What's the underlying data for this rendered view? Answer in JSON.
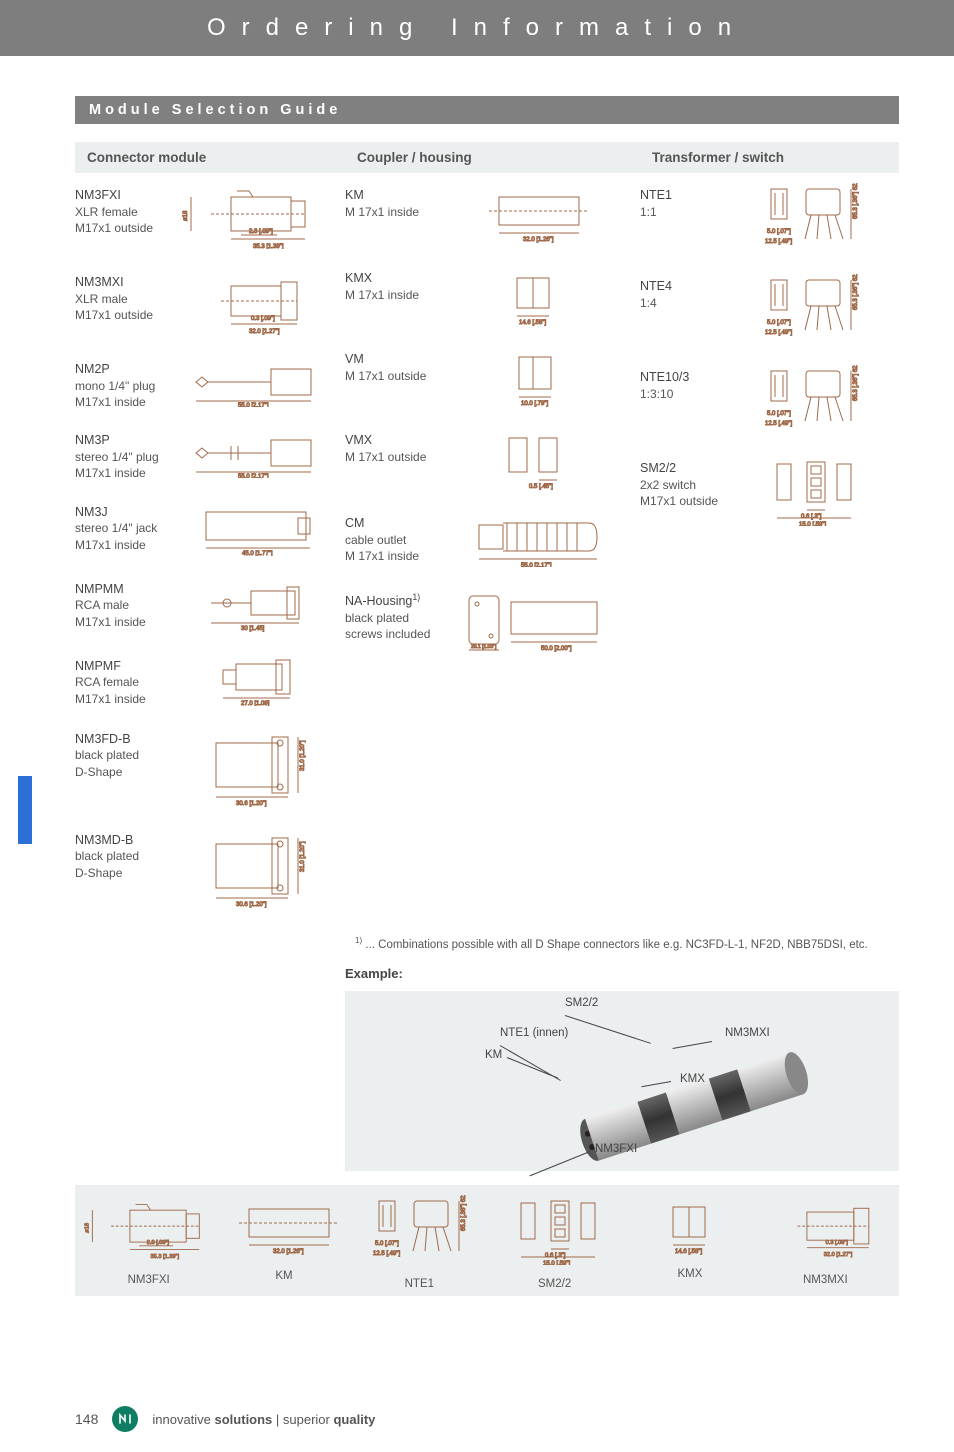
{
  "header": {
    "title": "Ordering Information"
  },
  "section_title": "Module Selection Guide",
  "columns": {
    "connector": "Connector module",
    "coupler": "Coupler / housing",
    "transformer": "Transformer / switch"
  },
  "connector_modules": [
    {
      "code": "NM3FXI",
      "line2": "XLR female",
      "line3": "M17x1 outside"
    },
    {
      "code": "NM3MXI",
      "line2": "XLR male",
      "line3": "M17x1 outside"
    },
    {
      "code": "NM2P",
      "line2": "mono 1/4\" plug",
      "line3": "M17x1 inside"
    },
    {
      "code": "NM3P",
      "line2": "stereo 1/4\" plug",
      "line3": "M17x1 inside"
    },
    {
      "code": "NM3J",
      "line2": "stereo 1/4\" jack",
      "line3": "M17x1 inside"
    },
    {
      "code": "NMPMM",
      "line2": "RCA male",
      "line3": "M17x1 inside"
    },
    {
      "code": "NMPMF",
      "line2": "RCA female",
      "line3": "M17x1 inside"
    },
    {
      "code": "NM3FD-B",
      "line2": "black plated",
      "line3": "D-Shape"
    },
    {
      "code": "NM3MD-B",
      "line2": "black plated",
      "line3": "D-Shape"
    }
  ],
  "coupler_modules": [
    {
      "code": "KM",
      "line2": "M 17x1 inside",
      "line3": ""
    },
    {
      "code": "KMX",
      "line2": "M 17x1 inside",
      "line3": ""
    },
    {
      "code": "VM",
      "line2": "M 17x1 outside",
      "line3": ""
    },
    {
      "code": "VMX",
      "line2": "M 17x1 outside",
      "line3": ""
    },
    {
      "code": "CM",
      "line2": "cable outlet",
      "line3": "M 17x1 inside"
    },
    {
      "code_html": "NA-Housing",
      "sup": "1)",
      "line2": "black plated",
      "line3": "screws included"
    }
  ],
  "transformer_modules": [
    {
      "code": "NTE1",
      "line2": "1:1",
      "line3": ""
    },
    {
      "code": "NTE4",
      "line2": "1:4",
      "line3": ""
    },
    {
      "code": "NTE10/3",
      "line2": "1:3:10",
      "line3": ""
    },
    {
      "code": "SM2/2",
      "line2": "2x2 switch",
      "line3": "M17x1 outside"
    }
  ],
  "footnote": {
    "marker": "1)",
    "text": "... Combinations possible with all D Shape connectors like e.g. NC3FD-L-1, NF2D, NBB75DSI, etc."
  },
  "example_label": "Example:",
  "assembly_labels": {
    "sm22": "SM2/2",
    "nte1": "NTE1 (innen)",
    "km": "KM",
    "nm3mxi": "NM3MXI",
    "kmx": "KMX",
    "nm3fxi": "NM3FXI"
  },
  "bottom_sequence": [
    "NM3FXI",
    "KM",
    "NTE1",
    "SM2/2",
    "KMX",
    "NM3MXI"
  ],
  "footer": {
    "page": "148",
    "tagline_part1": "innovative ",
    "tagline_bold1": "solutions",
    "tagline_mid": " | superior ",
    "tagline_bold2": "quality"
  },
  "style": {
    "header_bg": "#7e7e7e",
    "section_bg": "#808080",
    "panel_bg": "#eceff0",
    "text_color": "#555555",
    "accent_blue": "#2c6fd6",
    "diagram_stroke": "#a06a4a",
    "diagram_fill": "#ffffff"
  }
}
